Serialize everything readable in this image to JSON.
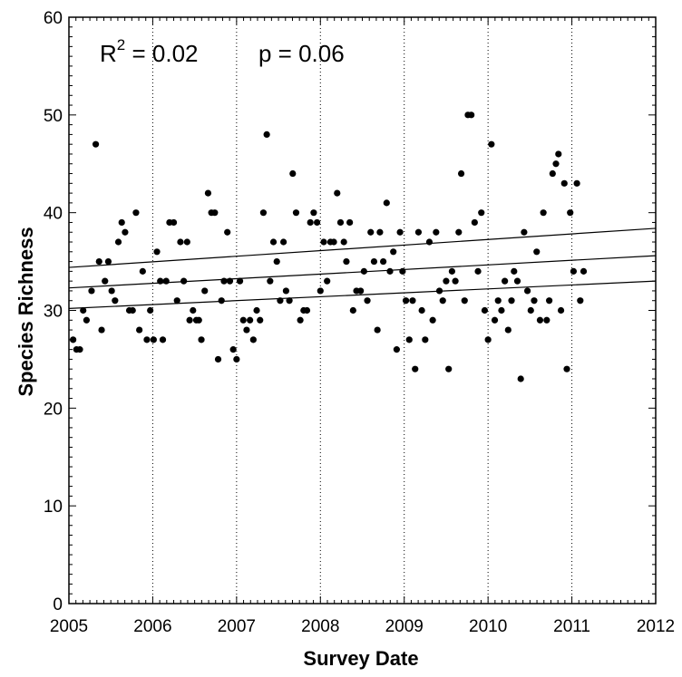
{
  "chart_data": {
    "type": "scatter",
    "title": "",
    "xlabel": "Survey Date",
    "ylabel": "Species Richness",
    "xlim": [
      2005,
      2012
    ],
    "ylim": [
      0,
      60
    ],
    "x_ticks": [
      "2005",
      "2006",
      "2007",
      "2008",
      "2009",
      "2010",
      "2011",
      "2012"
    ],
    "y_ticks": [
      "0",
      "10",
      "20",
      "30",
      "40",
      "50",
      "60"
    ],
    "grid": "vertical dotted lines at year ticks 2006–2011",
    "annotations": {
      "r2_prefix": "R",
      "r2_sup": "2",
      "r2_value": " = 0.02",
      "p_text": "p = 0.06"
    },
    "series": [
      {
        "type": "scatter",
        "points": [
          [
            2005.05,
            27
          ],
          [
            2005.09,
            26
          ],
          [
            2005.13,
            26
          ],
          [
            2005.17,
            30
          ],
          [
            2005.21,
            29
          ],
          [
            2005.27,
            32
          ],
          [
            2005.32,
            47
          ],
          [
            2005.36,
            35
          ],
          [
            2005.39,
            28
          ],
          [
            2005.43,
            33
          ],
          [
            2005.47,
            35
          ],
          [
            2005.51,
            32
          ],
          [
            2005.55,
            31
          ],
          [
            2005.59,
            37
          ],
          [
            2005.63,
            39
          ],
          [
            2005.67,
            38
          ],
          [
            2005.72,
            30
          ],
          [
            2005.76,
            30
          ],
          [
            2005.8,
            40
          ],
          [
            2005.84,
            28
          ],
          [
            2005.88,
            34
          ],
          [
            2005.93,
            27
          ],
          [
            2005.97,
            30
          ],
          [
            2006.01,
            27
          ],
          [
            2006.05,
            36
          ],
          [
            2006.09,
            33
          ],
          [
            2006.12,
            27
          ],
          [
            2006.16,
            33
          ],
          [
            2006.2,
            39
          ],
          [
            2006.25,
            39
          ],
          [
            2006.29,
            31
          ],
          [
            2006.33,
            37
          ],
          [
            2006.37,
            33
          ],
          [
            2006.41,
            37
          ],
          [
            2006.44,
            29
          ],
          [
            2006.48,
            30
          ],
          [
            2006.52,
            29
          ],
          [
            2006.55,
            29
          ],
          [
            2006.58,
            27
          ],
          [
            2006.62,
            32
          ],
          [
            2006.66,
            42
          ],
          [
            2006.7,
            40
          ],
          [
            2006.74,
            40
          ],
          [
            2006.78,
            25
          ],
          [
            2006.82,
            31
          ],
          [
            2006.85,
            33
          ],
          [
            2006.89,
            38
          ],
          [
            2006.92,
            33
          ],
          [
            2006.96,
            26
          ],
          [
            2007.0,
            25
          ],
          [
            2007.04,
            33
          ],
          [
            2007.08,
            29
          ],
          [
            2007.12,
            28
          ],
          [
            2007.16,
            29
          ],
          [
            2007.2,
            27
          ],
          [
            2007.24,
            30
          ],
          [
            2007.28,
            29
          ],
          [
            2007.32,
            40
          ],
          [
            2007.36,
            48
          ],
          [
            2007.4,
            33
          ],
          [
            2007.44,
            37
          ],
          [
            2007.48,
            35
          ],
          [
            2007.52,
            31
          ],
          [
            2007.56,
            37
          ],
          [
            2007.59,
            32
          ],
          [
            2007.63,
            31
          ],
          [
            2007.67,
            44
          ],
          [
            2007.71,
            40
          ],
          [
            2007.76,
            29
          ],
          [
            2007.8,
            30
          ],
          [
            2007.84,
            30
          ],
          [
            2007.88,
            39
          ],
          [
            2007.92,
            40
          ],
          [
            2007.96,
            39
          ],
          [
            2008.0,
            32
          ],
          [
            2008.04,
            37
          ],
          [
            2008.08,
            33
          ],
          [
            2008.12,
            37
          ],
          [
            2008.16,
            37
          ],
          [
            2008.2,
            42
          ],
          [
            2008.24,
            39
          ],
          [
            2008.28,
            37
          ],
          [
            2008.31,
            35
          ],
          [
            2008.35,
            39
          ],
          [
            2008.39,
            30
          ],
          [
            2008.43,
            32
          ],
          [
            2008.48,
            32
          ],
          [
            2008.52,
            34
          ],
          [
            2008.56,
            31
          ],
          [
            2008.6,
            38
          ],
          [
            2008.64,
            35
          ],
          [
            2008.68,
            28
          ],
          [
            2008.71,
            38
          ],
          [
            2008.75,
            35
          ],
          [
            2008.79,
            41
          ],
          [
            2008.83,
            34
          ],
          [
            2008.87,
            36
          ],
          [
            2008.91,
            26
          ],
          [
            2008.95,
            38
          ],
          [
            2008.98,
            34
          ],
          [
            2009.02,
            31
          ],
          [
            2009.06,
            27
          ],
          [
            2009.1,
            31
          ],
          [
            2009.13,
            24
          ],
          [
            2009.17,
            38
          ],
          [
            2009.21,
            30
          ],
          [
            2009.25,
            27
          ],
          [
            2009.3,
            37
          ],
          [
            2009.34,
            29
          ],
          [
            2009.38,
            38
          ],
          [
            2009.42,
            32
          ],
          [
            2009.46,
            31
          ],
          [
            2009.5,
            33
          ],
          [
            2009.53,
            24
          ],
          [
            2009.57,
            34
          ],
          [
            2009.61,
            33
          ],
          [
            2009.65,
            38
          ],
          [
            2009.68,
            44
          ],
          [
            2009.72,
            31
          ],
          [
            2009.76,
            50
          ],
          [
            2009.8,
            50
          ],
          [
            2009.84,
            39
          ],
          [
            2009.88,
            34
          ],
          [
            2009.92,
            40
          ],
          [
            2009.96,
            30
          ],
          [
            2010.0,
            27
          ],
          [
            2010.04,
            47
          ],
          [
            2010.08,
            29
          ],
          [
            2010.12,
            31
          ],
          [
            2010.16,
            30
          ],
          [
            2010.2,
            33
          ],
          [
            2010.24,
            28
          ],
          [
            2010.28,
            31
          ],
          [
            2010.31,
            34
          ],
          [
            2010.35,
            33
          ],
          [
            2010.39,
            23
          ],
          [
            2010.43,
            38
          ],
          [
            2010.47,
            32
          ],
          [
            2010.51,
            30
          ],
          [
            2010.55,
            31
          ],
          [
            2010.58,
            36
          ],
          [
            2010.62,
            29
          ],
          [
            2010.66,
            40
          ],
          [
            2010.7,
            29
          ],
          [
            2010.73,
            31
          ],
          [
            2010.77,
            44
          ],
          [
            2010.81,
            45
          ],
          [
            2010.84,
            46
          ],
          [
            2010.87,
            30
          ],
          [
            2010.91,
            43
          ],
          [
            2010.94,
            24
          ],
          [
            2010.98,
            40
          ],
          [
            2011.02,
            34
          ],
          [
            2011.06,
            43
          ],
          [
            2011.1,
            31
          ],
          [
            2011.14,
            34
          ]
        ]
      }
    ],
    "regression": {
      "fit": [
        [
          2005,
          32.3
        ],
        [
          2012,
          35.6
        ]
      ],
      "upper_ci": [
        [
          2005,
          34.4
        ],
        [
          2012,
          38.4
        ]
      ],
      "lower_ci": [
        [
          2005,
          30.2
        ],
        [
          2012,
          33.0
        ]
      ]
    }
  }
}
